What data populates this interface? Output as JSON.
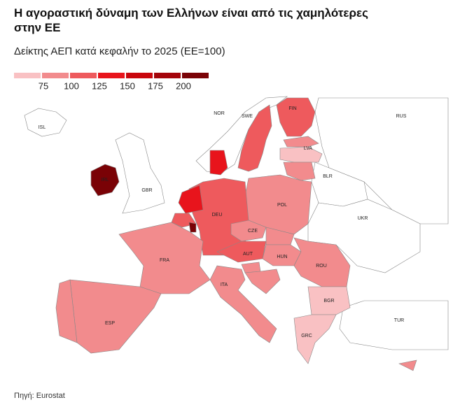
{
  "chart_data": {
    "type": "choropleth",
    "title": "Η αγοραστική δύναμη των Ελλήνων είναι από τις χαμηλότερες στην ΕΕ",
    "subtitle": "Δείκτης ΑΕΠ κατά κεφαλήν το 2025 (ΕΕ=100)",
    "legend": {
      "colors": [
        "#f9c1c3",
        "#f28b8d",
        "#ee5a5d",
        "#e8141c",
        "#c9060c",
        "#a4040a",
        "#7a0206"
      ],
      "ticks": [
        75,
        100,
        125,
        150,
        175,
        200
      ]
    },
    "regions": [
      {
        "label": "ISL",
        "value": null
      },
      {
        "label": "NOR",
        "value": null
      },
      {
        "label": "GBR",
        "value": null
      },
      {
        "label": "RUS",
        "value": null
      },
      {
        "label": "BLR",
        "value": null
      },
      {
        "label": "UKR",
        "value": null
      },
      {
        "label": "TUR",
        "value": null
      },
      {
        "label": "IRL",
        "value": 210
      },
      {
        "label": "SWE",
        "value": 112
      },
      {
        "label": "FIN",
        "value": 109
      },
      {
        "label": null,
        "value": 85
      },
      {
        "label": "LVA",
        "value": 71
      },
      {
        "label": null,
        "value": 89
      },
      {
        "label": "POL",
        "value": 79
      },
      {
        "label": "DEU",
        "value": 117
      },
      {
        "label": null,
        "value": 130
      },
      {
        "label": null,
        "value": 130
      },
      {
        "label": null,
        "value": 117
      },
      {
        "label": null,
        "value": 240
      },
      {
        "label": "FRA",
        "value": 97
      },
      {
        "label": "ESP",
        "value": 91
      },
      {
        "label": null,
        "value": 82
      },
      {
        "label": "ITA",
        "value": 96
      },
      {
        "label": "CZE",
        "value": 91
      },
      {
        "label": "AUT",
        "value": 122
      },
      {
        "label": null,
        "value": 76
      },
      {
        "label": "HUN",
        "value": 77
      },
      {
        "label": null,
        "value": 91
      },
      {
        "label": null,
        "value": 76
      },
      {
        "label": "ROU",
        "value": 78
      },
      {
        "label": "BGR",
        "value": 66
      },
      {
        "label": "GRC",
        "value": 67
      },
      {
        "label": null,
        "value": 94
      }
    ],
    "source": "Πηγή: Eurostat"
  }
}
